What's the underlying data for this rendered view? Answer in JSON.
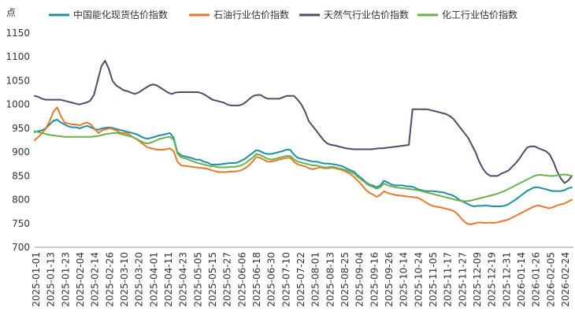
{
  "chart_data": {
    "type": "line",
    "y_unit": "点",
    "ylim": [
      700,
      1150
    ],
    "yticks": [
      700,
      750,
      800,
      850,
      900,
      950,
      1000,
      1050,
      1100,
      1150
    ],
    "grid": false,
    "legend_position": "top",
    "x_tick_labels": [
      "2025-01-01",
      "2025-01-13",
      "2025-01-23",
      "2025-02-04",
      "2025-02-14",
      "2025-02-26",
      "2025-03-10",
      "2025-03-20",
      "2025-04-01",
      "2025-04-11",
      "2025-04-23",
      "2025-05-05",
      "2025-05-15",
      "2025-05-27",
      "2025-06-06",
      "2025-06-18",
      "2025-06-30",
      "2025-07-10",
      "2025-07-22",
      "2025-08-01",
      "2025-08-13",
      "2025-08-25",
      "2025-09-04",
      "2025-09-16",
      "2025-09-26",
      "2025-10-14",
      "2025-10-24",
      "2025-11-05",
      "2025-11-17",
      "2025-11-27",
      "2025-12-09",
      "2025-12-19",
      "2025-12-31",
      "2026-01-14",
      "2026-01-26",
      "2026-02-05",
      "2026-02-24"
    ],
    "series": [
      {
        "name": "中国能化现货估价指数",
        "color": "#1f8fa6",
        "values": [
          942,
          944,
          946,
          950,
          958,
          966,
          968,
          962,
          958,
          954,
          952,
          952,
          950,
          953,
          955,
          952,
          948,
          947,
          950,
          951,
          952,
          950,
          948,
          946,
          944,
          942,
          940,
          938,
          934,
          930,
          928,
          930,
          932,
          935,
          936,
          938,
          940,
          930,
          900,
          893,
          891,
          889,
          887,
          884,
          884,
          880,
          878,
          874,
          874,
          874,
          875,
          876,
          877,
          877,
          878,
          882,
          886,
          892,
          898,
          904,
          902,
          898,
          896,
          896,
          898,
          900,
          902,
          905,
          905,
          895,
          888,
          886,
          884,
          882,
          880,
          880,
          878,
          876,
          876,
          875,
          874,
          872,
          870,
          866,
          862,
          859,
          851,
          845,
          838,
          832,
          830,
          826,
          830,
          840,
          836,
          832,
          830,
          830,
          830,
          828,
          828,
          826,
          822,
          820,
          818,
          818,
          818,
          817,
          816,
          815,
          812,
          810,
          806,
          800,
          796,
          792,
          788,
          786,
          787,
          787,
          788,
          787,
          786,
          786,
          786,
          787,
          790,
          795,
          800,
          806,
          812,
          818,
          822,
          826,
          826,
          824,
          822,
          820,
          818,
          818,
          818,
          820,
          824,
          826
        ]
      },
      {
        "name": "石油行业估价指数",
        "color": "#e8792a",
        "values": [
          925,
          932,
          940,
          950,
          965,
          985,
          994,
          975,
          962,
          960,
          958,
          958,
          956,
          960,
          962,
          958,
          948,
          940,
          946,
          948,
          950,
          948,
          944,
          940,
          940,
          938,
          932,
          928,
          922,
          916,
          910,
          908,
          906,
          905,
          905,
          906,
          908,
          902,
          880,
          872,
          871,
          870,
          869,
          868,
          867,
          866,
          865,
          862,
          860,
          858,
          858,
          858,
          859,
          859,
          860,
          862,
          866,
          872,
          880,
          890,
          888,
          884,
          880,
          880,
          882,
          884,
          886,
          888,
          888,
          880,
          874,
          872,
          870,
          866,
          864,
          866,
          868,
          866,
          866,
          867,
          866,
          864,
          862,
          858,
          854,
          848,
          840,
          832,
          822,
          815,
          811,
          806,
          810,
          818,
          814,
          812,
          810,
          809,
          808,
          807,
          806,
          805,
          804,
          800,
          795,
          790,
          787,
          785,
          784,
          782,
          780,
          778,
          774,
          766,
          757,
          750,
          748,
          750,
          752,
          752,
          751,
          752,
          751,
          752,
          754,
          756,
          758,
          762,
          766,
          770,
          774,
          778,
          782,
          786,
          788,
          786,
          784,
          782,
          784,
          788,
          790,
          792,
          796,
          800
        ]
      },
      {
        "name": "天然气行业估价指数",
        "color": "#4a4e6b",
        "values": [
          1018,
          1016,
          1012,
          1010,
          1010,
          1010,
          1010,
          1010,
          1008,
          1006,
          1004,
          1002,
          1000,
          1002,
          1004,
          1008,
          1020,
          1050,
          1080,
          1092,
          1075,
          1050,
          1040,
          1035,
          1030,
          1028,
          1025,
          1022,
          1025,
          1030,
          1035,
          1040,
          1042,
          1040,
          1035,
          1030,
          1025,
          1022,
          1025,
          1026,
          1026,
          1026,
          1026,
          1026,
          1026,
          1024,
          1020,
          1015,
          1010,
          1008,
          1006,
          1004,
          1000,
          998,
          998,
          998,
          1000,
          1005,
          1012,
          1018,
          1020,
          1020,
          1015,
          1012,
          1012,
          1012,
          1012,
          1015,
          1018,
          1018,
          1018,
          1010,
          1000,
          985,
          965,
          955,
          945,
          935,
          925,
          918,
          915,
          914,
          912,
          910,
          908,
          907,
          906,
          906,
          906,
          906,
          906,
          906,
          907,
          908,
          908,
          909,
          910,
          911,
          912,
          913,
          914,
          915,
          990,
          990,
          990,
          990,
          990,
          988,
          986,
          984,
          982,
          980,
          976,
          970,
          960,
          950,
          940,
          930,
          915,
          900,
          880,
          865,
          855,
          850,
          850,
          850,
          855,
          858,
          862,
          870,
          878,
          888,
          900,
          910,
          912,
          912,
          908,
          905,
          902,
          895,
          880,
          860,
          845,
          835,
          840,
          850
        ]
      },
      {
        "name": "化工行业估价指数",
        "color": "#6ab24a",
        "values": [
          944,
          942,
          940,
          938,
          936,
          935,
          934,
          933,
          932,
          932,
          932,
          932,
          932,
          932,
          932,
          932,
          933,
          934,
          936,
          938,
          939,
          940,
          940,
          938,
          936,
          934,
          932,
          928,
          924,
          920,
          918,
          920,
          923,
          927,
          929,
          931,
          932,
          926,
          897,
          889,
          887,
          884,
          881,
          878,
          876,
          874,
          872,
          870,
          870,
          868,
          868,
          868,
          869,
          869,
          870,
          872,
          876,
          882,
          888,
          896,
          894,
          890,
          886,
          884,
          886,
          888,
          890,
          892,
          892,
          885,
          880,
          878,
          876,
          874,
          872,
          872,
          870,
          868,
          868,
          869,
          868,
          866,
          864,
          862,
          858,
          855,
          848,
          842,
          836,
          830,
          827,
          823,
          826,
          834,
          830,
          828,
          826,
          825,
          824,
          823,
          822,
          821,
          820,
          818,
          816,
          814,
          812,
          810,
          808,
          806,
          804,
          802,
          800,
          798,
          797,
          797,
          798,
          800,
          802,
          804,
          806,
          808,
          810,
          812,
          815,
          818,
          822,
          826,
          830,
          834,
          838,
          842,
          846,
          850,
          852,
          852,
          851,
          850,
          850,
          851,
          852,
          853,
          852,
          850
        ]
      }
    ]
  }
}
